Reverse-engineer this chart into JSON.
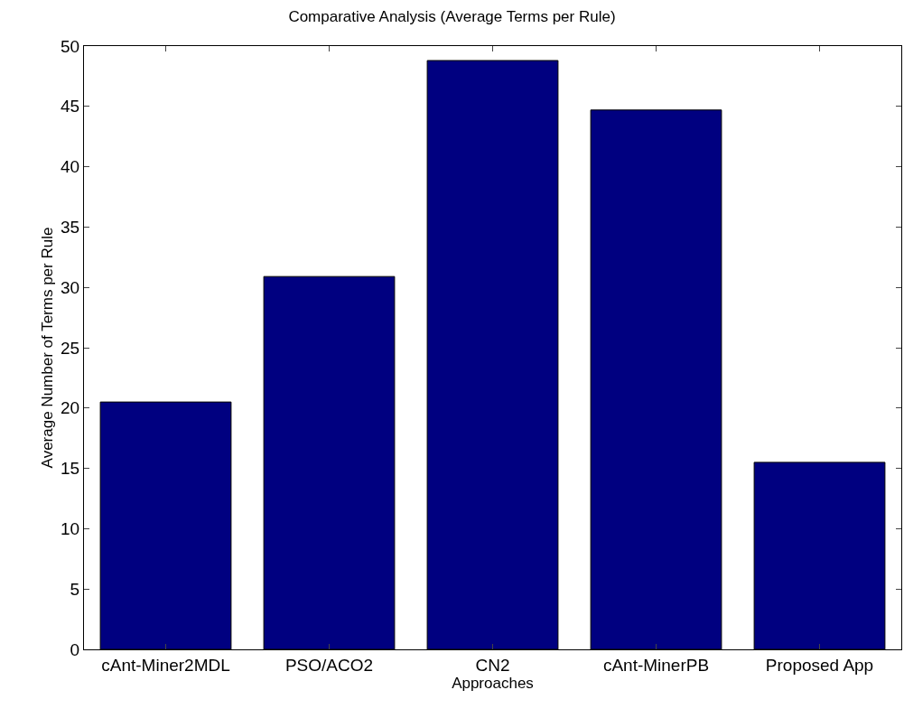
{
  "chart_data": {
    "type": "bar",
    "title": "Comparative Analysis (Average Terms per Rule)",
    "xlabel": "Approaches",
    "ylabel": "Average Number of Terms per Rule",
    "categories": [
      "cAnt-Miner2MDL",
      "PSO/ACO2",
      "CN2",
      "cAnt-MinerPB",
      "Proposed App"
    ],
    "values": [
      20.5,
      30.9,
      48.8,
      44.7,
      15.5
    ],
    "color": "#000080",
    "ylim": [
      0,
      50
    ],
    "yticks": [
      0,
      5,
      10,
      15,
      20,
      25,
      30,
      35,
      40,
      45,
      50
    ]
  }
}
